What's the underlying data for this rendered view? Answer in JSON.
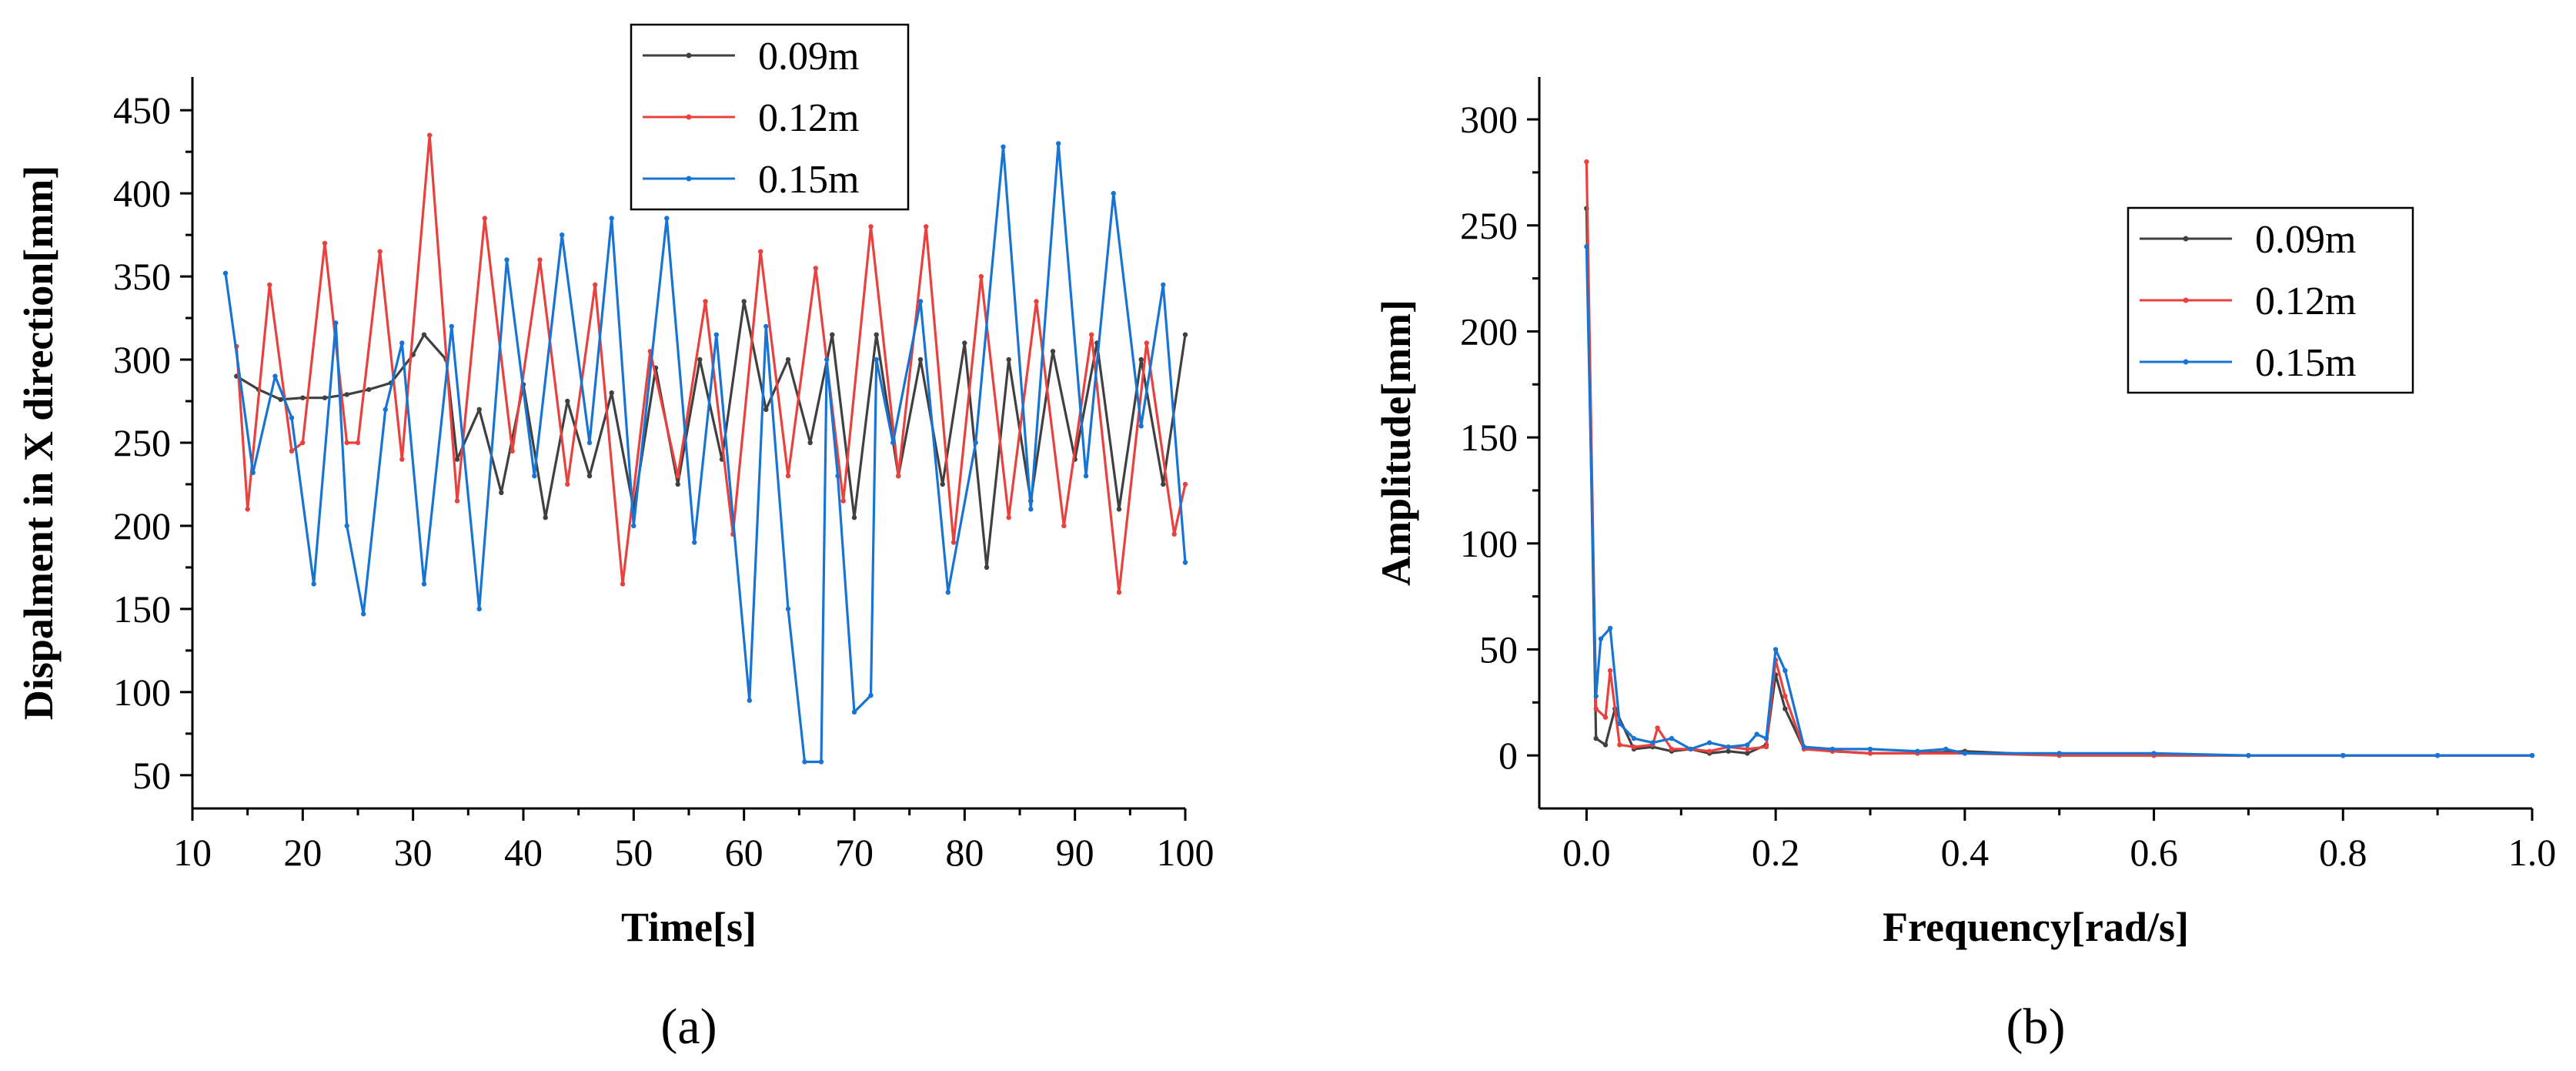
{
  "chart_data": [
    {
      "type": "line",
      "panel_label": "(a)",
      "xlabel": "Time[s]",
      "ylabel": "Dispalment in X direction[mm]",
      "xlim": [
        10,
        100
      ],
      "ylim": [
        30,
        470
      ],
      "xticks": [
        10,
        20,
        30,
        40,
        50,
        60,
        70,
        80,
        90,
        100
      ],
      "yticks": [
        50,
        100,
        150,
        200,
        250,
        300,
        350,
        400,
        450
      ],
      "legend_position": "top-center",
      "series": [
        {
          "name": "0.09m",
          "color": "#404040",
          "x": [
            14,
            16,
            18,
            20,
            22,
            24,
            26,
            28,
            30,
            31,
            33,
            34,
            36,
            38,
            40,
            42,
            44,
            46,
            48,
            50,
            52,
            54,
            56,
            58,
            60,
            62,
            64,
            66,
            68,
            70,
            72,
            74,
            76,
            78,
            80,
            82,
            84,
            86,
            88,
            90,
            92,
            94,
            96,
            98,
            100
          ],
          "y": [
            290,
            282,
            276,
            277,
            277,
            279,
            282,
            286,
            303,
            315,
            300,
            240,
            270,
            220,
            285,
            205,
            275,
            230,
            280,
            210,
            295,
            225,
            300,
            240,
            335,
            270,
            300,
            250,
            315,
            205,
            315,
            230,
            300,
            225,
            310,
            175,
            300,
            215,
            305,
            240,
            310,
            210,
            300,
            225,
            315
          ]
        },
        {
          "name": "0.12m",
          "color": "#e8413e",
          "x": [
            14,
            15,
            17,
            19,
            20,
            22,
            24,
            25,
            27,
            29,
            31.5,
            34,
            36.5,
            39,
            41.5,
            44,
            46.5,
            49,
            51.5,
            54,
            56.5,
            59,
            61.5,
            64,
            66.5,
            69,
            71.5,
            74,
            76.5,
            79,
            81.5,
            84,
            86.5,
            89,
            91.5,
            94,
            96.5,
            99,
            100
          ],
          "y": [
            308,
            210,
            345,
            245,
            250,
            370,
            250,
            250,
            365,
            240,
            435,
            215,
            385,
            245,
            360,
            225,
            345,
            165,
            305,
            230,
            335,
            195,
            365,
            230,
            355,
            215,
            380,
            230,
            380,
            190,
            350,
            205,
            335,
            200,
            315,
            160,
            310,
            195,
            225
          ]
        },
        {
          "name": "0.15m",
          "color": "#1874d2",
          "x": [
            13,
            15.5,
            17.5,
            19,
            21,
            23,
            24,
            25.5,
            27.5,
            29,
            31,
            33.5,
            36,
            38.5,
            41,
            43.5,
            46,
            48,
            50,
            53,
            55.5,
            57.5,
            60.5,
            62,
            64,
            65.5,
            67,
            67.5,
            68.5,
            70,
            71.5,
            72,
            73.5,
            76,
            78.5,
            81,
            83.5,
            86,
            88.5,
            91,
            93.5,
            96,
            98,
            100
          ],
          "y": [
            352,
            232,
            290,
            265,
            165,
            322,
            200,
            147,
            270,
            310,
            165,
            320,
            150,
            360,
            230,
            375,
            250,
            385,
            200,
            385,
            190,
            315,
            95,
            320,
            150,
            58,
            58,
            300,
            230,
            88,
            98,
            300,
            250,
            335,
            160,
            250,
            428,
            210,
            430,
            230,
            400,
            260,
            345,
            178
          ]
        }
      ]
    },
    {
      "type": "line",
      "panel_label": "(b)",
      "xlabel": "Frequency[rad/s]",
      "ylabel": "Amplitude[mm]",
      "xlim": [
        -0.05,
        1.0
      ],
      "ylim": [
        -25,
        320
      ],
      "xticks": [
        "0.0",
        "0.2",
        "0.4",
        "0.6",
        "0.8",
        "1.0"
      ],
      "yticks": [
        0,
        50,
        100,
        150,
        200,
        250,
        300
      ],
      "legend_position": "right",
      "series": [
        {
          "name": "0.09m",
          "color": "#404040",
          "x": [
            0.0,
            0.01,
            0.02,
            0.03,
            0.05,
            0.07,
            0.09,
            0.11,
            0.13,
            0.15,
            0.17,
            0.19,
            0.2,
            0.21,
            0.23,
            0.26,
            0.3,
            0.35,
            0.4,
            0.5,
            0.6,
            0.7,
            0.8,
            0.9,
            1.0
          ],
          "y": [
            258,
            8,
            5,
            22,
            3,
            4,
            2,
            3,
            1,
            2,
            1,
            5,
            38,
            22,
            3,
            2,
            1,
            1,
            2,
            0,
            0,
            0,
            0,
            0,
            0
          ]
        },
        {
          "name": "0.12m",
          "color": "#e8413e",
          "x": [
            0.0,
            0.01,
            0.02,
            0.025,
            0.035,
            0.05,
            0.07,
            0.075,
            0.09,
            0.11,
            0.13,
            0.15,
            0.17,
            0.19,
            0.2,
            0.21,
            0.23,
            0.26,
            0.3,
            0.35,
            0.4,
            0.5,
            0.6,
            0.7,
            0.8,
            0.9,
            1.0
          ],
          "y": [
            280,
            22,
            18,
            40,
            5,
            4,
            5,
            13,
            3,
            3,
            2,
            4,
            3,
            4,
            45,
            28,
            3,
            2,
            1,
            1,
            1,
            0,
            0,
            0,
            0,
            0,
            0
          ]
        },
        {
          "name": "0.15m",
          "color": "#1874d2",
          "x": [
            0.0,
            0.01,
            0.015,
            0.025,
            0.035,
            0.05,
            0.07,
            0.09,
            0.11,
            0.13,
            0.15,
            0.17,
            0.18,
            0.19,
            0.2,
            0.21,
            0.23,
            0.26,
            0.3,
            0.35,
            0.38,
            0.4,
            0.5,
            0.6,
            0.7,
            0.8,
            0.9,
            1.0
          ],
          "y": [
            240,
            28,
            55,
            60,
            15,
            8,
            6,
            8,
            3,
            6,
            4,
            5,
            10,
            8,
            50,
            40,
            4,
            3,
            3,
            2,
            3,
            1,
            1,
            1,
            0,
            0,
            0,
            0
          ]
        }
      ]
    }
  ]
}
